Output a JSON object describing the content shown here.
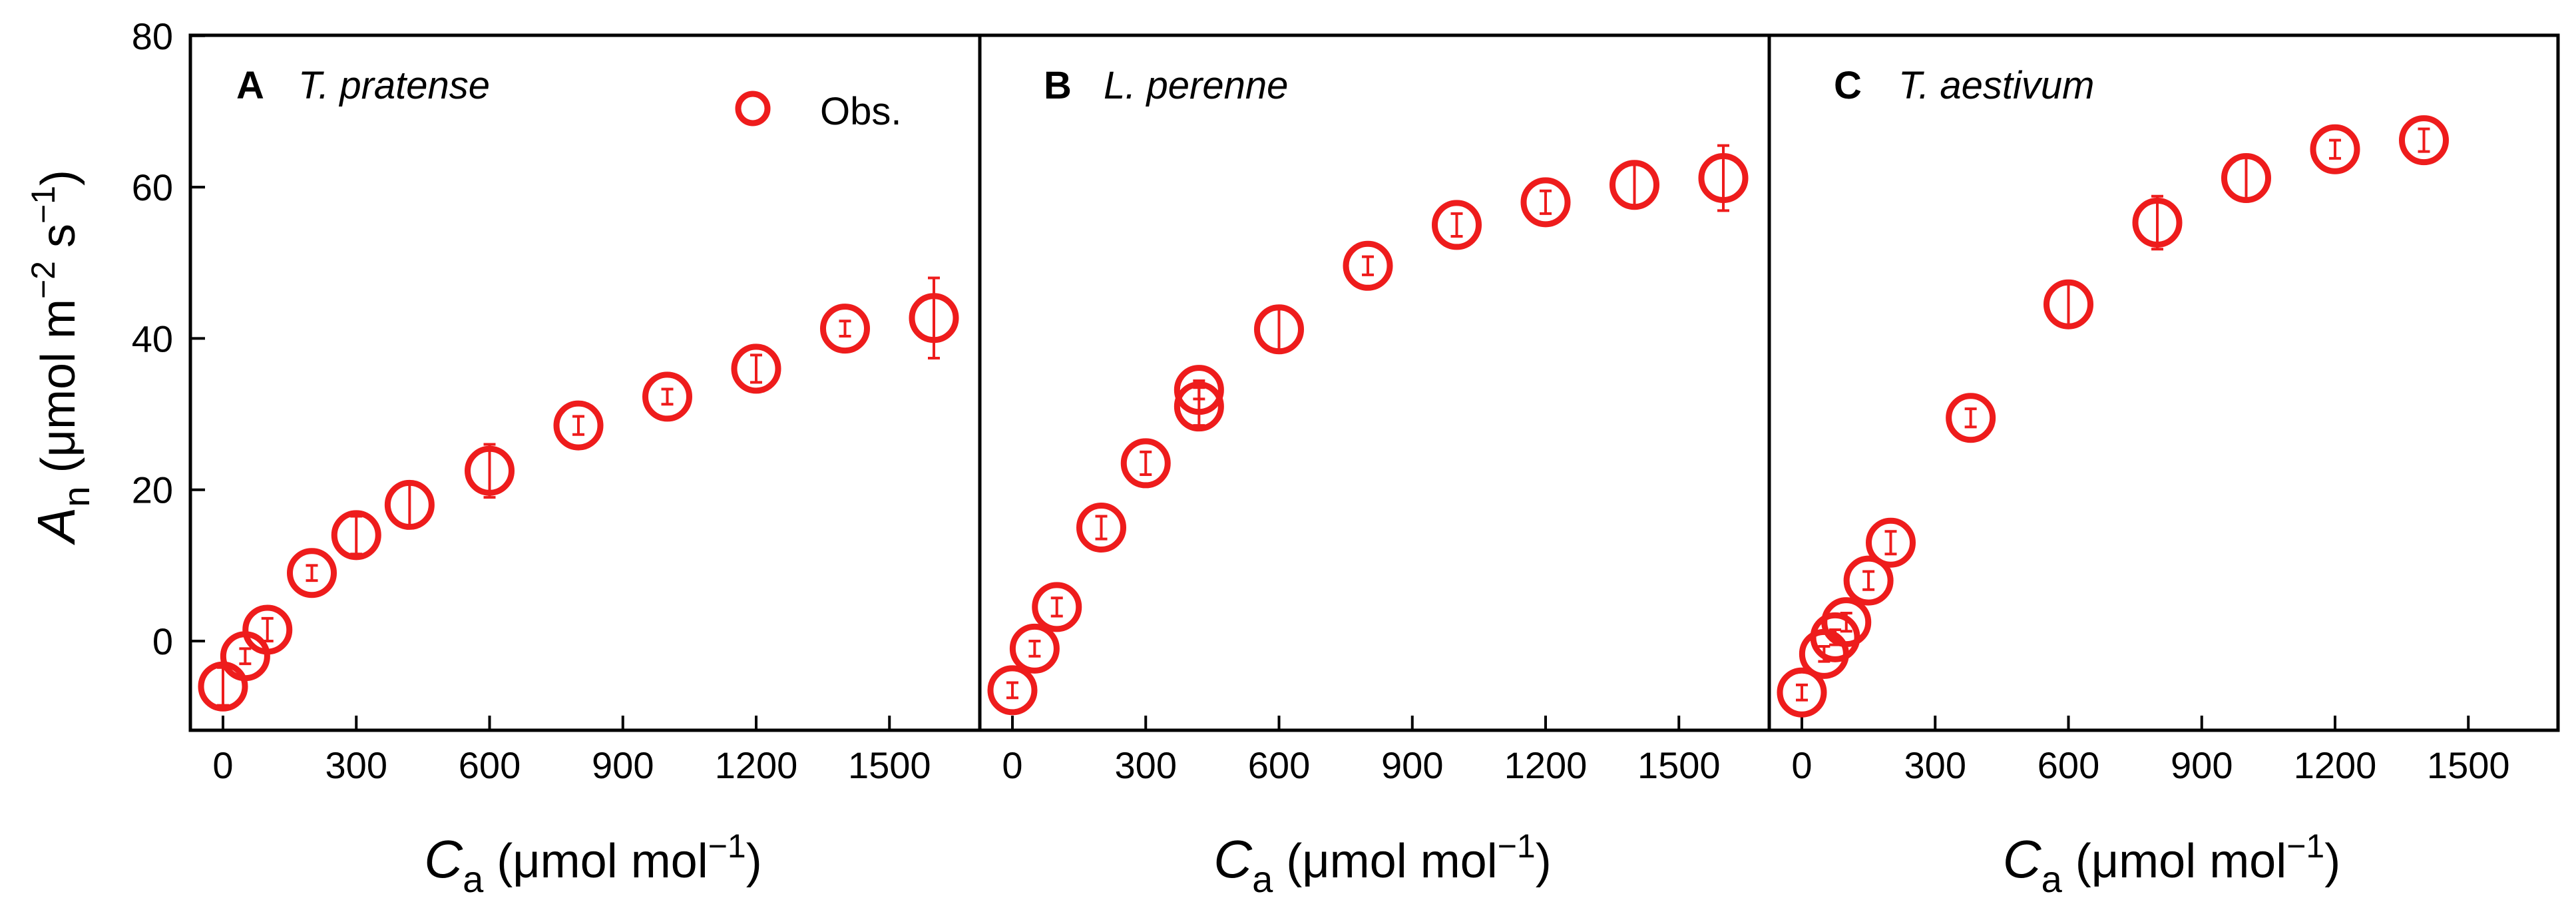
{
  "figure": {
    "y_axis_label": {
      "main": "A",
      "sub": "n",
      "unit_open": " (μmol m",
      "exp1": "−2",
      "mid": " s",
      "exp2": "−1",
      "close": ")"
    },
    "x_axis_label": {
      "main": "C",
      "sub": "a",
      "unit": " (μmol mol",
      "exp": "−1",
      "close": ")"
    },
    "legend": {
      "label": "Obs.",
      "marker": "open-circle"
    },
    "marker_color": "#ee1c1c",
    "y_ticks": [
      0,
      20,
      40,
      60,
      80
    ],
    "x_ticks": [
      0,
      300,
      600,
      900,
      1200,
      1500
    ]
  },
  "chart_data": [
    {
      "type": "scatter",
      "panel": "A",
      "title": "T. pratense",
      "xlabel": "Ca (μmol mol−1)",
      "ylabel": "An (μmol m−2 s−1)",
      "xlim": [
        -60,
        1720
      ],
      "ylim": [
        -12,
        80
      ],
      "grid": false,
      "legend": "top-right",
      "series": [
        {
          "name": "Obs.",
          "x": [
            0,
            50,
            100,
            200,
            300,
            420,
            600,
            800,
            1000,
            1200,
            1400,
            1600
          ],
          "y": [
            -6,
            -2,
            1.5,
            9,
            14,
            18,
            22.5,
            28.5,
            32.3,
            36,
            41.3,
            42.7
          ],
          "err": [
            2.5,
            1,
            1.5,
            1,
            2.5,
            2.8,
            3.5,
            1.2,
            1,
            1.8,
            1,
            5.3
          ]
        }
      ]
    },
    {
      "type": "scatter",
      "panel": "B",
      "title": "L. perenne",
      "xlabel": "Ca (μmol mol−1)",
      "xlim": [
        -60,
        1720
      ],
      "ylim": [
        -12,
        80
      ],
      "grid": false,
      "series": [
        {
          "name": "Obs.",
          "x": [
            0,
            50,
            100,
            200,
            300,
            420,
            420,
            600,
            800,
            1000,
            1200,
            1400,
            1600
          ],
          "y": [
            -6.5,
            -1,
            4.5,
            15,
            23.5,
            31,
            33.2,
            41.2,
            49.6,
            55,
            58,
            60.3,
            61.2
          ],
          "err": [
            1,
            1,
            1.2,
            1.5,
            1.5,
            2.5,
            1.2,
            2.8,
            1.2,
            1.5,
            1.5,
            2.8,
            4.3
          ]
        }
      ]
    },
    {
      "type": "scatter",
      "panel": "C",
      "title": "T. aestivum",
      "xlabel": "Ca (μmol mol−1)",
      "xlim": [
        -60,
        1720
      ],
      "ylim": [
        -12,
        80
      ],
      "grid": false,
      "series": [
        {
          "name": "Obs.",
          "x": [
            0,
            50,
            75,
            100,
            150,
            200,
            380,
            600,
            800,
            1000,
            1200,
            1400
          ],
          "y": [
            -6.8,
            -1.7,
            0.5,
            2.5,
            8,
            13,
            29.5,
            44.5,
            55.3,
            61.2,
            65,
            66.2
          ],
          "err": [
            1,
            1,
            1,
            1.2,
            1.2,
            1.5,
            1.2,
            3,
            3.5,
            2.8,
            1.2,
            1.5
          ]
        }
      ]
    }
  ]
}
